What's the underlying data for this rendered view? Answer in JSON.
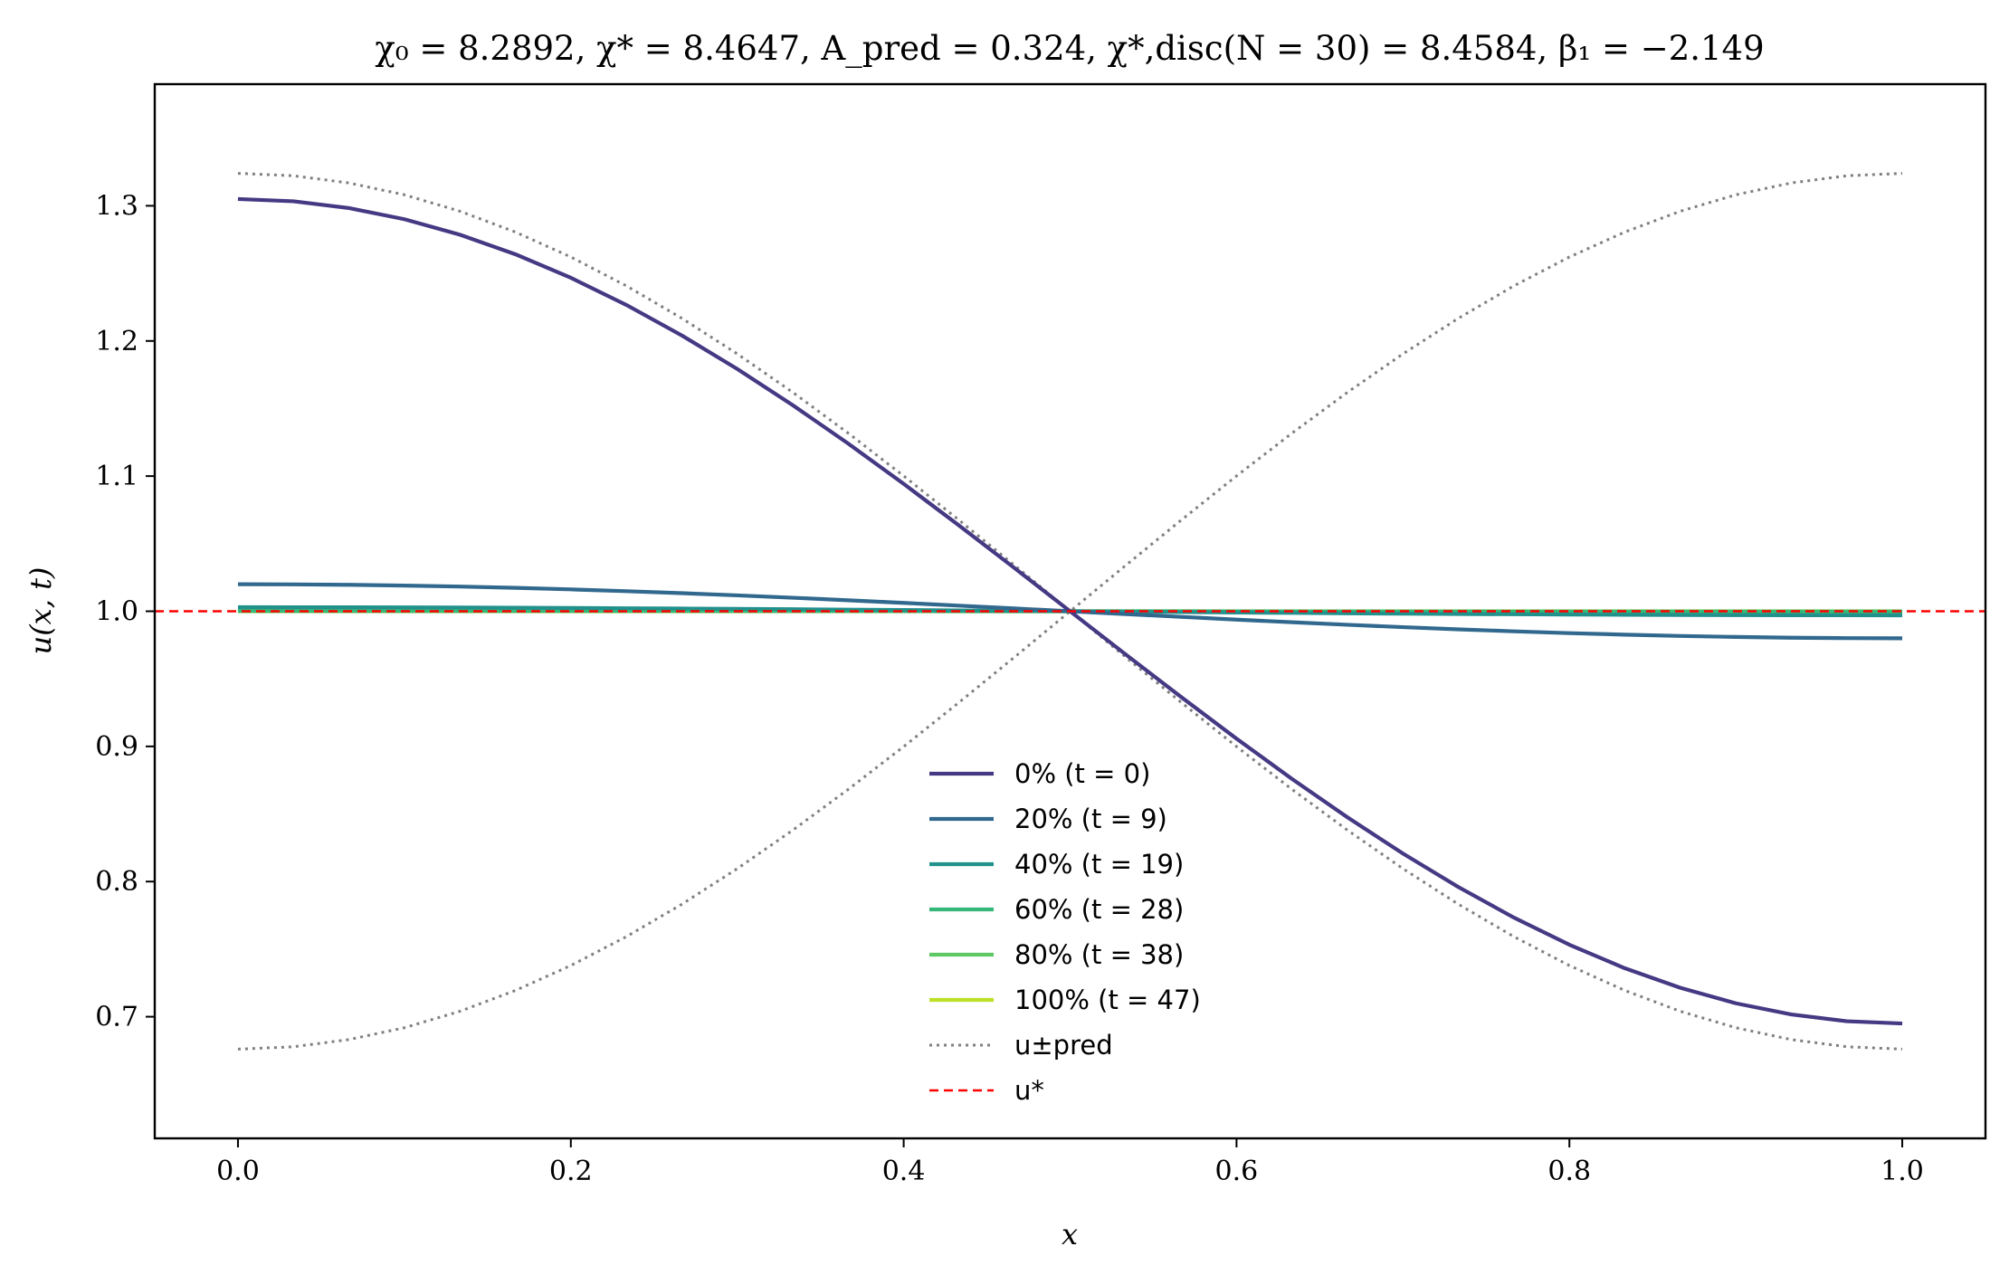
{
  "chart_data": {
    "type": "line",
    "title": "χ₀ = 8.2892,  χ* = 8.4647,  A_pred = 0.324,  χ*,disc(N = 30) = 8.4584,  β₁ = −2.149",
    "xlabel": "x",
    "ylabel": "u(x, t)",
    "xlim": [
      -0.05,
      1.05
    ],
    "ylim": [
      0.61,
      1.39
    ],
    "xticks": [
      0.0,
      0.2,
      0.4,
      0.6,
      0.8,
      1.0
    ],
    "xtick_labels": [
      "0.0",
      "0.2",
      "0.4",
      "0.6",
      "0.8",
      "1.0"
    ],
    "yticks": [
      0.7,
      0.8,
      0.9,
      1.0,
      1.1,
      1.2,
      1.3
    ],
    "ytick_labels": [
      "0.7",
      "0.8",
      "0.9",
      "1.0",
      "1.1",
      "1.2",
      "1.3"
    ],
    "grid": false,
    "legend_position": "lower-center",
    "u_star": 1.0,
    "mode": "cos(pi x)",
    "series": [
      {
        "name": "0% (t = 0)",
        "amplitude": 0.305,
        "color": "#443983",
        "style": "solid"
      },
      {
        "name": "20% (t = 9)",
        "amplitude": 0.02,
        "color": "#31688e",
        "style": "solid"
      },
      {
        "name": "40% (t = 19)",
        "amplitude": 0.003,
        "color": "#21918c",
        "style": "solid"
      },
      {
        "name": "60% (t = 28)",
        "amplitude": 0.0005,
        "color": "#35b779",
        "style": "solid"
      },
      {
        "name": "80% (t = 38)",
        "amplitude": 0.0001,
        "color": "#5ec962",
        "style": "solid"
      },
      {
        "name": "100% (t = 47)",
        "amplitude": 0.0,
        "color": "#bddf26",
        "style": "solid"
      },
      {
        "name": "u±pred",
        "amplitude": 0.324,
        "mirror": true,
        "color": "#808080",
        "style": "dotted"
      },
      {
        "name": "u*",
        "constant": 1.0,
        "color": "#ff0000",
        "style": "dashed"
      }
    ]
  }
}
